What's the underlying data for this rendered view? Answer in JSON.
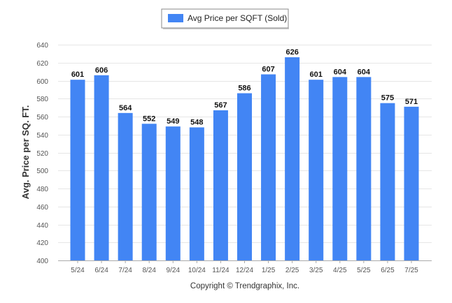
{
  "chart_data": {
    "type": "bar",
    "categories": [
      "5/24",
      "6/24",
      "7/24",
      "8/24",
      "9/24",
      "10/24",
      "11/24",
      "12/24",
      "1/25",
      "2/25",
      "3/25",
      "4/25",
      "5/25",
      "6/25",
      "7/25"
    ],
    "series": [
      {
        "name": "Avg Price per SQFT (Sold)",
        "values": [
          601,
          606,
          564,
          552,
          549,
          548,
          567,
          586,
          607,
          626,
          601,
          604,
          604,
          575,
          571
        ],
        "color": "#4285f4"
      }
    ],
    "ylabel": "Avg. Price per SQ. FT.",
    "xlabel": "",
    "ylim": [
      400,
      640
    ],
    "yticks": [
      400,
      420,
      440,
      460,
      480,
      500,
      520,
      540,
      560,
      580,
      600,
      620,
      640
    ],
    "grid": true,
    "legend_position": "top-center",
    "data_labels": true
  },
  "footer": {
    "copyright": "Copyright © Trendgraphix, Inc."
  }
}
